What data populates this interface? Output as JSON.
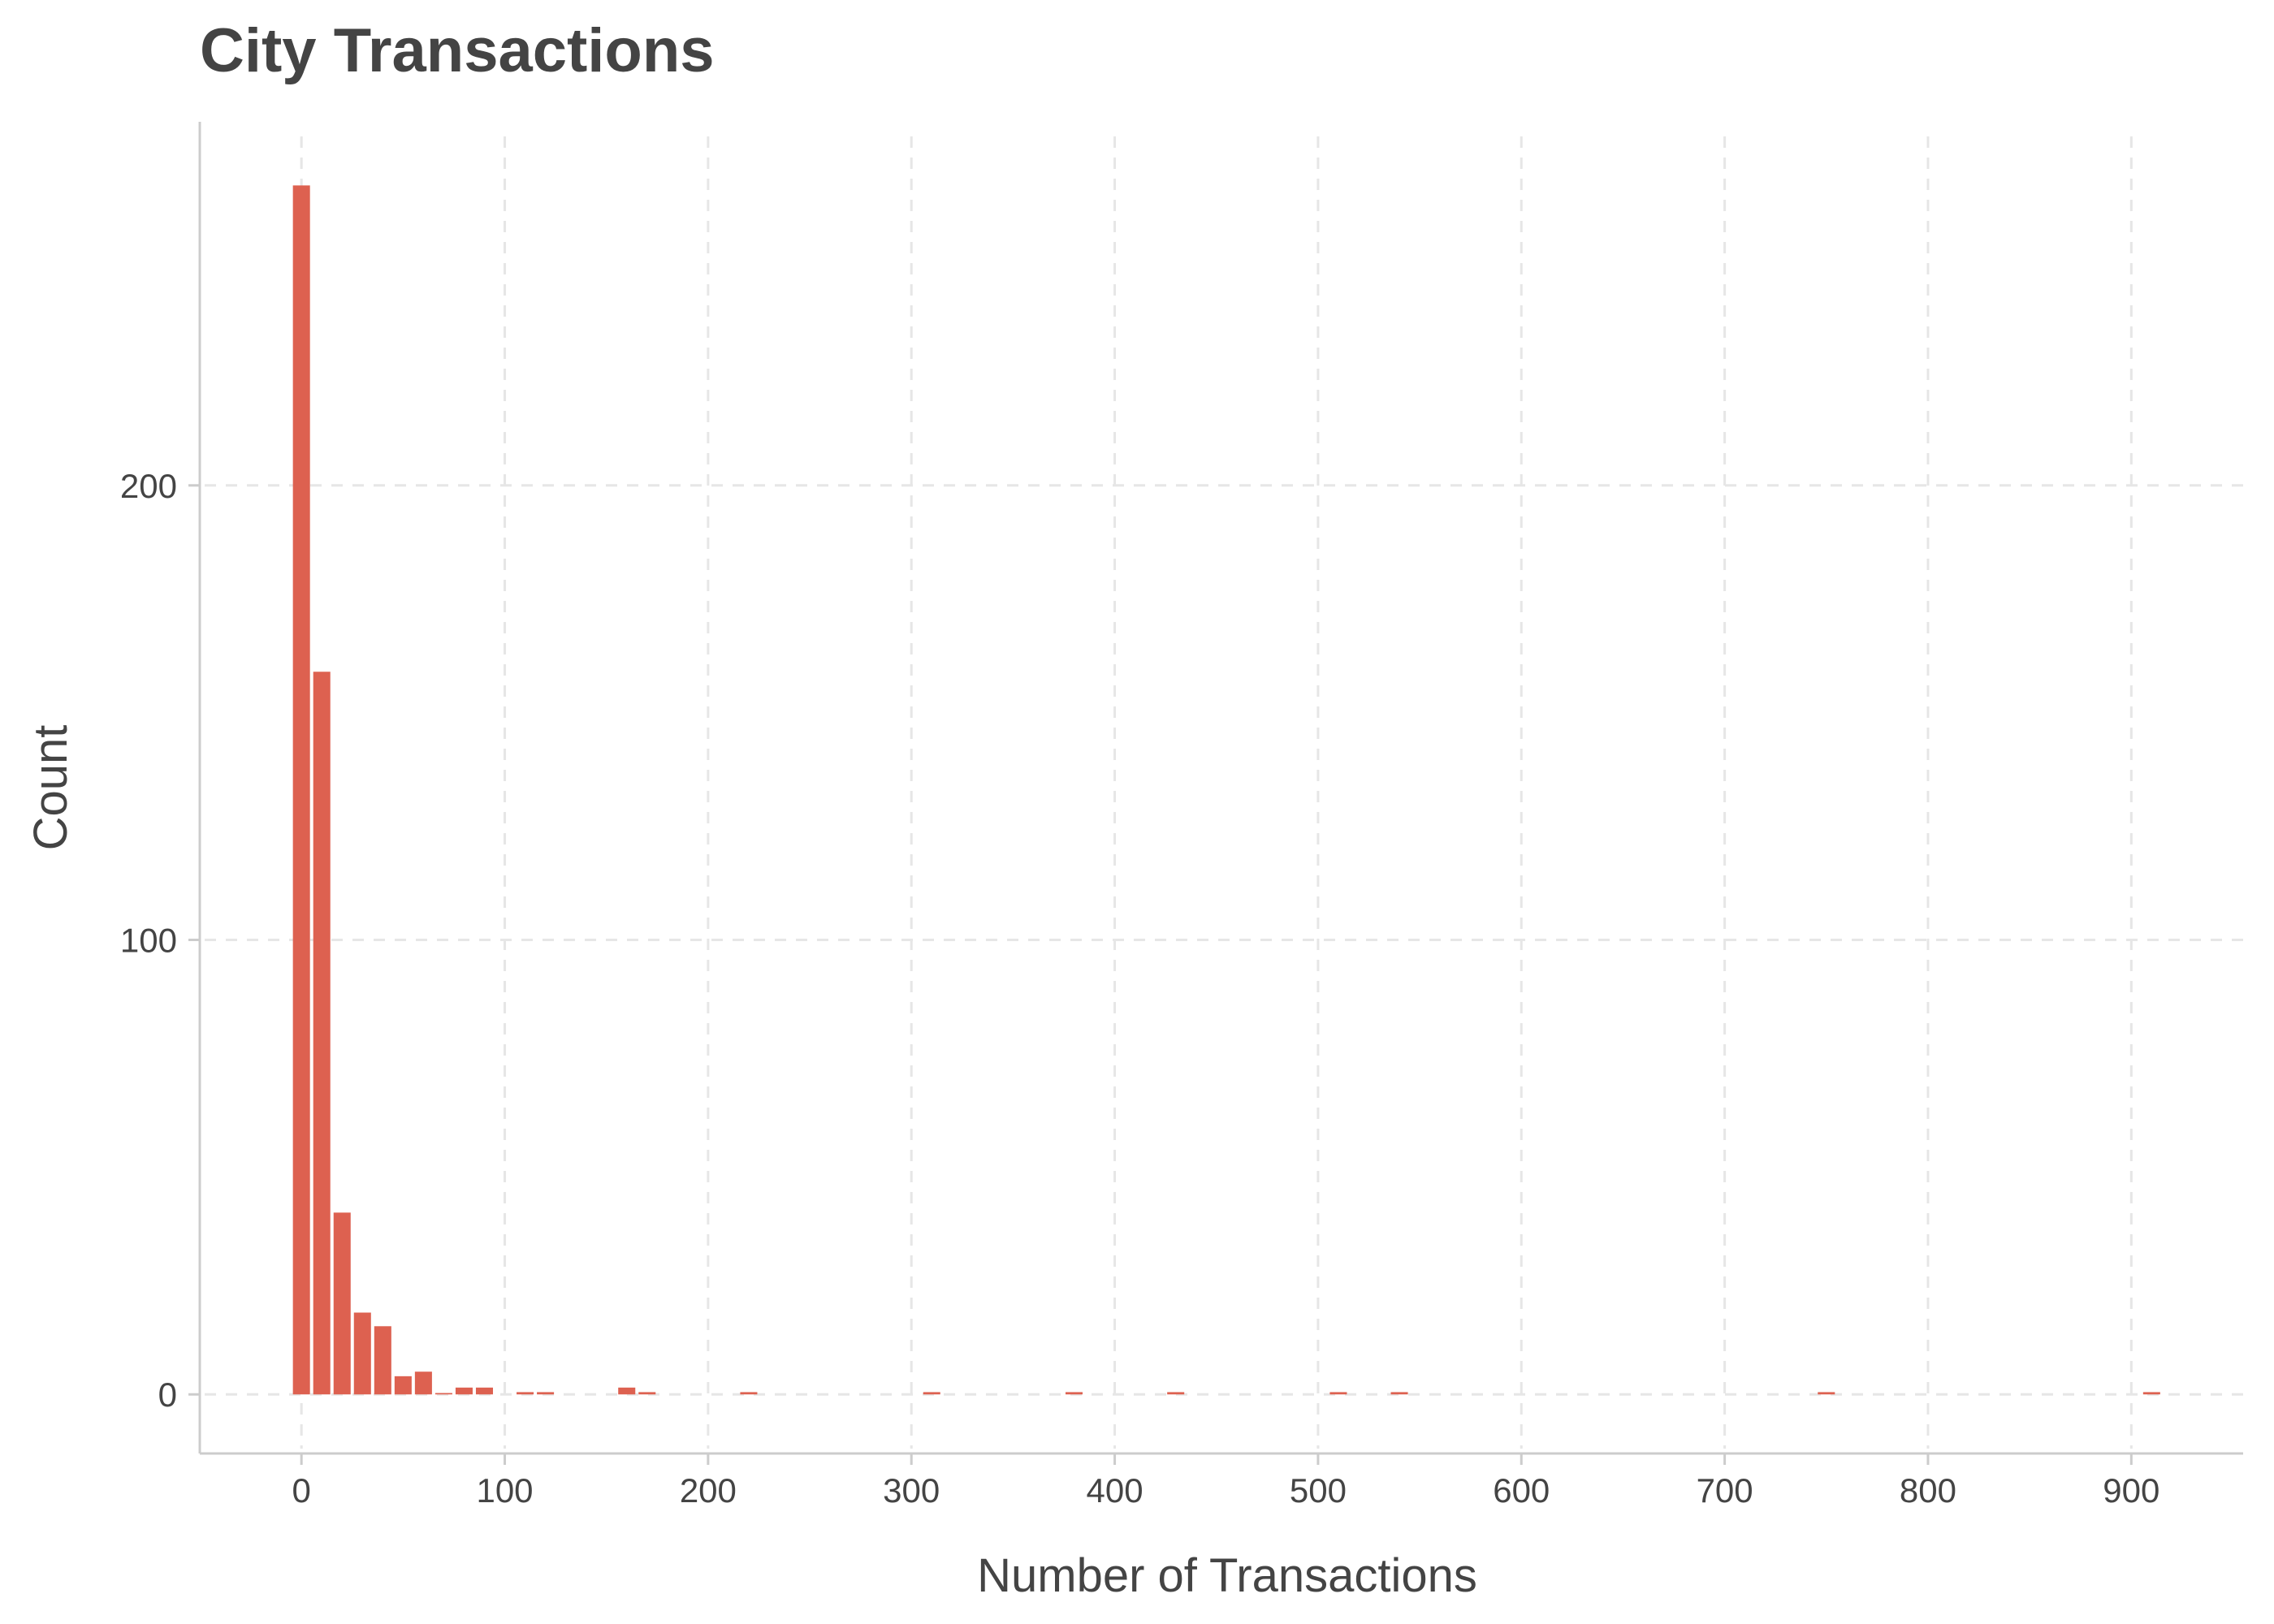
{
  "chart_data": {
    "type": "bar",
    "title": "City Transactions",
    "xlabel": "Number of Transactions",
    "ylabel": "Count",
    "xlim": [
      -50,
      955
    ],
    "ylim": [
      -13,
      280
    ],
    "xticks": [
      "0",
      "100",
      "200",
      "300",
      "400",
      "500",
      "600",
      "700",
      "800",
      "900"
    ],
    "yticks": [
      "0",
      "100",
      "200"
    ],
    "grid": true,
    "bin_width": 10,
    "bar_color": "#dd6150",
    "bars": [
      {
        "x": 0,
        "count": 266
      },
      {
        "x": 10,
        "count": 159
      },
      {
        "x": 20,
        "count": 40
      },
      {
        "x": 30,
        "count": 18
      },
      {
        "x": 40,
        "count": 15
      },
      {
        "x": 50,
        "count": 4
      },
      {
        "x": 60,
        "count": 5
      },
      {
        "x": 70,
        "count": 0.3
      },
      {
        "x": 80,
        "count": 1.5
      },
      {
        "x": 90,
        "count": 1.5
      },
      {
        "x": 110,
        "count": 0.5
      },
      {
        "x": 120,
        "count": 0.5
      },
      {
        "x": 160,
        "count": 1.5
      },
      {
        "x": 170,
        "count": 0.5
      },
      {
        "x": 220,
        "count": 0.5
      },
      {
        "x": 310,
        "count": 0.5
      },
      {
        "x": 380,
        "count": 0.5
      },
      {
        "x": 430,
        "count": 0.5
      },
      {
        "x": 510,
        "count": 0.5
      },
      {
        "x": 540,
        "count": 0.5
      },
      {
        "x": 750,
        "count": 0.5
      },
      {
        "x": 910,
        "count": 0.5
      }
    ]
  }
}
